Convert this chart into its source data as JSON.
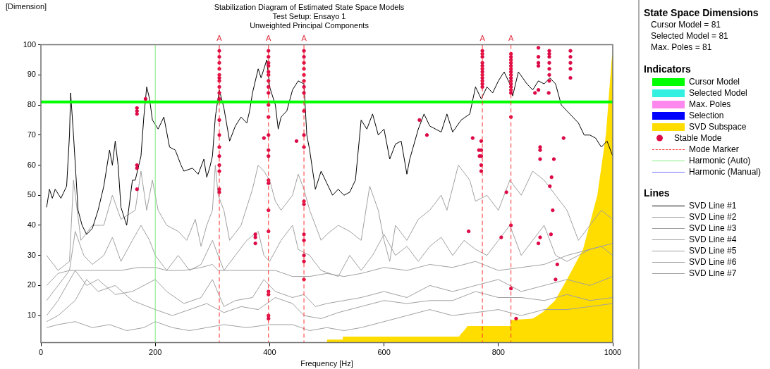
{
  "chart_data": {
    "type": "line",
    "title": "Stabilization Diagram of Estimated State Space Models",
    "subtitle": "Test Setup: Ensayo 1\nUnweighted Principal Components",
    "xlabel": "Frequency [Hz]",
    "ylabel": "[Dimension]",
    "ref_lines": [
      {
        "axis": "x",
        "value": 312,
        "color": "#ff3030",
        "line_style": "dashed"
      },
      {
        "axis": "x",
        "value": 398,
        "color": "#ff3030",
        "line_style": "dashed"
      },
      {
        "axis": "x",
        "value": 460,
        "color": "#ff3030",
        "line_style": "dashed"
      },
      {
        "axis": "x",
        "value": 772,
        "color": "#ff3030",
        "line_style": "dashed"
      },
      {
        "axis": "x",
        "value": 822,
        "color": "#ff3030",
        "line_style": "dashed"
      }
    ],
    "xlim": [
      0,
      1000
    ],
    "xticks": [
      0,
      200,
      400,
      600,
      800,
      1000
    ],
    "ylim": [
      1,
      100
    ],
    "yticks": [
      10,
      20,
      30,
      40,
      50,
      60,
      70,
      80,
      90,
      100
    ],
    "grid": false,
    "legend": "right",
    "marker": "none",
    "annotations": [
      "State Space Dimensions",
      "Cursor Model = 81",
      "Selected Model = 81",
      "Max. Poles = 81",
      "Indicators",
      "Lines",
      {
        "text": "A",
        "x": 312,
        "y": 100
      },
      {
        "text": "A",
        "x": 398,
        "y": 100
      },
      {
        "text": "A",
        "x": 460,
        "y": 100
      },
      {
        "text": "A",
        "x": 772,
        "y": 100
      },
      {
        "text": "A",
        "x": 822,
        "y": 100
      }
    ],
    "series": [
      {
        "name": "Cursor Model",
        "color": "#00ff00",
        "x": [
          0,
          1000
        ],
        "values": [
          81,
          81
        ]
      },
      {
        "name": "Selected Model",
        "color": "#33f0e0"
      },
      {
        "name": "Max. Poles",
        "color": "#ff88ee"
      },
      {
        "name": "Selection",
        "color": "#0000ff"
      },
      {
        "name": "SVD Subspace",
        "type": "area",
        "color": "#ffdd00",
        "x": [
          500,
          528,
          528,
          731,
          735,
          740,
          746,
          821,
          821,
          860,
          877,
          899,
          920,
          948,
          973,
          988,
          998,
          1000
        ],
        "values": [
          2,
          2,
          3,
          3,
          4,
          5,
          6.5,
          6.5,
          8.5,
          9,
          11,
          15,
          22,
          32,
          50,
          70,
          95,
          98
        ]
      },
      {
        "name": "Stable Mode",
        "type": "scatter",
        "color": "#dc0a46",
        "marker": "circle",
        "x": [
          312,
          312,
          312,
          312,
          312,
          312,
          312,
          312,
          312,
          312,
          312,
          312,
          312,
          312,
          312,
          312,
          312,
          312,
          168,
          168,
          168,
          168,
          168,
          168,
          183,
          398,
          398,
          398,
          398,
          398,
          398,
          398,
          398,
          398,
          398,
          398,
          398,
          398,
          398,
          398,
          398,
          398,
          398,
          398,
          398,
          398,
          398,
          390,
          375,
          375,
          375,
          460,
          460,
          460,
          460,
          460,
          460,
          460,
          460,
          460,
          460,
          460,
          460,
          460,
          460,
          460,
          460,
          460,
          460,
          447,
          662,
          675,
          755,
          766,
          767,
          748,
          772,
          772,
          772,
          772,
          772,
          772,
          772,
          772,
          772,
          772,
          772,
          772,
          770,
          770,
          770,
          770,
          770,
          822,
          822,
          822,
          822,
          822,
          822,
          822,
          822,
          822,
          822,
          822,
          822,
          822,
          822,
          822,
          822,
          822,
          831,
          814,
          805,
          870,
          870,
          870,
          870,
          870,
          889,
          889,
          889,
          889,
          889,
          889,
          889,
          926,
          926,
          926,
          926,
          926,
          864,
          888,
          914,
          873,
          873,
          873,
          897,
          893,
          890,
          895,
          873,
          870,
          892,
          903,
          900
        ],
        "values": [
          98,
          96,
          94,
          92,
          90,
          89,
          88,
          86,
          84,
          82,
          75,
          70,
          66,
          63,
          60,
          58,
          52,
          51,
          79,
          78,
          77,
          60,
          59,
          52,
          82,
          98,
          96,
          94,
          93,
          91,
          90,
          88,
          86,
          84,
          80,
          76,
          70,
          65,
          63,
          55,
          54,
          45,
          38,
          18,
          17,
          10,
          9,
          69,
          37,
          36,
          34,
          98,
          96,
          94,
          92,
          90,
          88,
          86,
          84,
          78,
          70,
          66,
          48,
          47,
          37,
          35,
          30,
          28,
          22,
          68,
          75,
          70,
          69,
          65,
          63,
          38,
          98,
          97,
          96,
          94,
          93,
          92,
          91,
          90,
          89,
          88,
          87,
          86,
          68,
          65,
          63,
          60,
          58,
          97,
          96,
          95,
          94,
          93,
          92,
          91,
          90,
          89,
          88,
          87,
          86,
          85,
          84,
          76,
          40,
          19,
          9,
          51,
          36,
          99,
          96,
          94,
          93,
          85,
          98,
          97,
          96,
          94,
          92,
          90,
          88,
          98,
          96,
          94,
          92,
          89,
          84,
          84,
          69,
          66,
          65,
          62,
          62,
          56,
          53,
          45,
          36,
          34,
          37,
          27,
          22
        ]
      },
      {
        "name": "Mode Marker",
        "color": "#ff3030",
        "line_style": "dashed"
      },
      {
        "name": "Harmonic (Auto)",
        "color": "#80ee80",
        "x": [
          200,
          200
        ],
        "values": [
          1,
          100
        ]
      },
      {
        "name": "Harmonic (Manual)",
        "color": "#7070ff"
      },
      {
        "name": "SVD Line #1",
        "color": "#000000",
        "x": [
          10,
          15,
          20,
          25,
          35,
          45,
          50,
          52,
          57,
          65,
          72,
          80,
          90,
          100,
          110,
          120,
          125,
          130,
          135,
          140,
          150,
          160,
          165,
          175,
          180,
          185,
          190,
          195,
          205,
          215,
          225,
          235,
          245,
          250,
          265,
          275,
          285,
          290,
          295,
          300,
          305,
          312,
          320,
          330,
          340,
          350,
          360,
          365,
          370,
          380,
          385,
          395,
          400,
          410,
          415,
          420,
          430,
          440,
          450,
          460,
          465,
          470,
          480,
          490,
          500,
          510,
          520,
          530,
          540,
          550,
          560,
          570,
          580,
          590,
          600,
          610,
          620,
          630,
          640,
          645,
          660,
          670,
          680,
          700,
          710,
          720,
          735,
          750,
          760,
          770,
          780,
          790,
          800,
          810,
          820,
          825,
          835,
          850,
          860,
          870,
          880,
          890,
          900,
          910,
          920,
          930,
          940,
          950,
          960,
          970,
          980,
          990,
          1000
        ],
        "values": [
          46,
          52,
          49,
          52,
          49,
          53,
          70,
          84,
          70,
          45,
          40,
          37,
          39,
          45,
          53,
          65,
          60,
          68,
          60,
          46,
          40,
          55,
          55,
          63,
          76,
          86,
          82,
          75,
          72,
          76,
          66,
          65,
          60,
          58,
          59,
          57,
          62,
          56,
          59,
          63,
          76,
          85,
          79,
          68,
          73,
          76,
          74,
          78,
          84,
          92,
          89,
          95,
          86,
          80,
          72,
          76,
          78,
          85,
          88,
          87,
          70,
          65,
          52,
          58,
          54,
          50,
          52,
          50,
          51,
          55,
          75,
          72,
          77,
          70,
          72,
          62,
          67,
          68,
          57,
          62,
          72,
          77,
          73,
          71,
          77,
          71,
          75,
          77,
          86,
          82,
          86,
          84,
          88,
          91,
          87,
          83,
          91,
          87,
          85,
          88,
          87,
          89,
          87,
          80,
          78,
          76,
          74,
          70,
          70,
          69,
          66,
          68,
          63
        ]
      },
      {
        "name": "SVD Line #2",
        "color": "#a0a0a0",
        "x": [
          10,
          30,
          50,
          57,
          70,
          90,
          110,
          125,
          140,
          165,
          175,
          185,
          195,
          205,
          220,
          240,
          255,
          270,
          280,
          290,
          300,
          305,
          310,
          320,
          330,
          350,
          370,
          380,
          390,
          400,
          410,
          420,
          440,
          450,
          460,
          470,
          490,
          500,
          520,
          540,
          560,
          575,
          590,
          600,
          610,
          620,
          640,
          660,
          680,
          700,
          710,
          730,
          750,
          760,
          780,
          800,
          820,
          840,
          860,
          880,
          900,
          920,
          940,
          960,
          980,
          1000
        ],
        "values": [
          30,
          25,
          28,
          55,
          35,
          40,
          40,
          50,
          42,
          45,
          58,
          45,
          55,
          45,
          40,
          38,
          35,
          42,
          33,
          40,
          45,
          60,
          50,
          45,
          35,
          40,
          52,
          60,
          58,
          55,
          48,
          45,
          50,
          57,
          52,
          45,
          35,
          37,
          40,
          38,
          35,
          53,
          45,
          35,
          28,
          40,
          35,
          42,
          45,
          50,
          45,
          60,
          55,
          48,
          50,
          45,
          55,
          50,
          58,
          55,
          50,
          45,
          35,
          40,
          45,
          42
        ]
      },
      {
        "name": "SVD Line #3",
        "color": "#a0a0a0",
        "x": [
          10,
          30,
          50,
          60,
          75,
          90,
          110,
          125,
          140,
          160,
          175,
          190,
          200,
          220,
          240,
          260,
          280,
          300,
          320,
          340,
          360,
          380,
          390,
          400,
          420,
          440,
          450,
          470,
          490,
          520,
          540,
          560,
          580,
          600,
          620,
          640,
          660,
          680,
          700,
          720,
          740,
          760,
          780,
          800,
          820,
          840,
          860,
          880,
          900,
          920,
          940,
          960,
          980,
          1000
        ],
        "values": [
          20,
          24,
          25,
          38,
          30,
          27,
          30,
          36,
          28,
          35,
          40,
          35,
          30,
          25,
          30,
          25,
          27,
          35,
          25,
          30,
          35,
          38,
          30,
          28,
          35,
          40,
          32,
          30,
          25,
          23,
          30,
          25,
          30,
          37,
          30,
          33,
          28,
          33,
          36,
          30,
          35,
          32,
          30,
          35,
          40,
          30,
          35,
          40,
          30,
          28,
          30,
          32,
          33,
          30
        ]
      },
      {
        "name": "SVD Line #4",
        "color": "#a0a0a0",
        "x": [
          10,
          30,
          50,
          70,
          90,
          110,
          140,
          170,
          200,
          220,
          250,
          280,
          300,
          310,
          330,
          360,
          390,
          410,
          440,
          470,
          500,
          530,
          560,
          600,
          640,
          680,
          720,
          760,
          800,
          840,
          880,
          920,
          960,
          1000
        ],
        "values": [
          15,
          20,
          25,
          25,
          25,
          25,
          25,
          26,
          26,
          25,
          25,
          26,
          27,
          25,
          25,
          25,
          25,
          25,
          23,
          23,
          24,
          23,
          24,
          26,
          25,
          27,
          26,
          28,
          25,
          26,
          27,
          30,
          32,
          34
        ]
      },
      {
        "name": "SVD Line #5",
        "color": "#a0a0a0",
        "x": [
          10,
          30,
          60,
          80,
          100,
          130,
          160,
          200,
          220,
          250,
          280,
          300,
          320,
          340,
          370,
          390,
          410,
          440,
          460,
          480,
          500,
          530,
          560,
          600,
          640,
          680,
          720,
          760,
          800,
          840,
          880,
          920,
          960,
          1000
        ],
        "values": [
          10,
          15,
          25,
          20,
          22,
          17,
          18,
          22,
          18,
          14,
          16,
          22,
          13,
          15,
          16,
          22,
          18,
          16,
          17,
          13,
          14,
          15,
          16,
          18,
          16,
          20,
          18,
          20,
          22,
          18,
          20,
          22,
          20,
          23
        ]
      },
      {
        "name": "SVD Line #6",
        "color": "#a0a0a0",
        "x": [
          10,
          30,
          60,
          80,
          100,
          130,
          160,
          200,
          230,
          260,
          290,
          320,
          350,
          380,
          410,
          440,
          460,
          490,
          520,
          560,
          600,
          640,
          680,
          720,
          760,
          800,
          840,
          880,
          920,
          960,
          1000
        ],
        "values": [
          8,
          10,
          15,
          22,
          18,
          20,
          15,
          12,
          10,
          12,
          14,
          11,
          13,
          12,
          16,
          14,
          10,
          9,
          11,
          13,
          15,
          14,
          15,
          15,
          18,
          16,
          16,
          15,
          17,
          15,
          16
        ]
      },
      {
        "name": "SVD Line #7",
        "color": "#a0a0a0",
        "x": [
          10,
          30,
          60,
          90,
          120,
          150,
          180,
          200,
          230,
          260,
          290,
          320,
          360,
          400,
          440,
          470,
          500,
          530,
          560,
          600,
          640,
          680,
          720,
          760,
          800,
          840,
          880,
          920,
          960,
          1000
        ],
        "values": [
          6,
          7,
          8,
          6,
          7,
          5,
          6,
          8,
          6,
          5,
          6,
          7,
          6,
          7,
          7,
          5,
          6,
          5,
          6,
          8,
          10,
          12,
          10,
          11,
          12,
          10,
          12,
          12,
          13,
          14
        ]
      }
    ]
  }
}
